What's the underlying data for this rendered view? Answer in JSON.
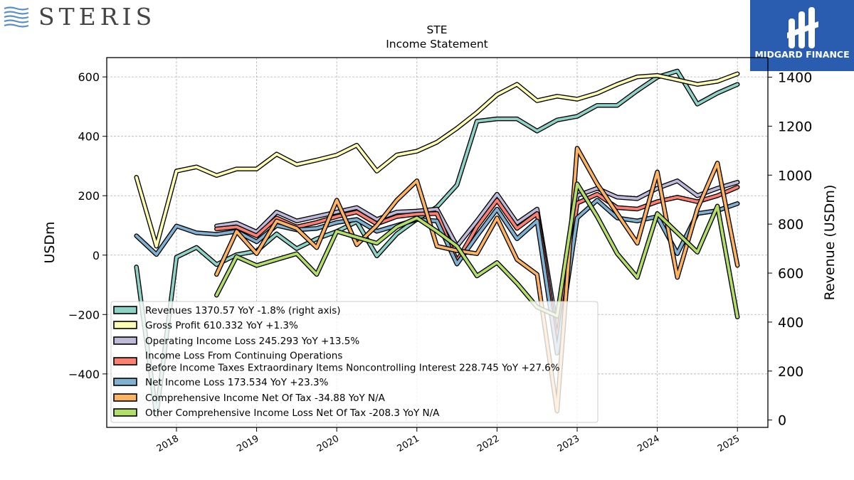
{
  "brand": {
    "name": "STERIS",
    "partner": "MIDGARD FINANCE"
  },
  "chart_data": {
    "type": "line",
    "title": "STE",
    "subtitle": "Income Statement",
    "ylabel_left": "USDm",
    "ylabel_right": "Revenue (USDm)",
    "ylim_left": [
      -580,
      665
    ],
    "ylim_right": [
      -30,
      1480
    ],
    "xlim": [
      2017.13,
      2025.38
    ],
    "left_ticks": [
      -400,
      -200,
      0,
      200,
      400,
      600
    ],
    "right_ticks": [
      0,
      200,
      400,
      600,
      800,
      1000,
      1200,
      1400
    ],
    "x_ticks": [
      "2018",
      "2019",
      "2020",
      "2021",
      "2022",
      "2023",
      "2024",
      "2025"
    ],
    "grid": true,
    "legend_position": "lower-left",
    "series": [
      {
        "name": "Revenues",
        "legend": "Revenues  1370.57 YoY -1.8% (right axis)",
        "axis": "right",
        "color": "#8dd3c7",
        "x": [
          2017.5,
          2017.75,
          2018.0,
          2018.25,
          2018.5,
          2018.75,
          2019.0,
          2019.25,
          2019.5,
          2019.75,
          2020.0,
          2020.25,
          2020.5,
          2020.75,
          2021.0,
          2021.25,
          2021.5,
          2021.75,
          2022.0,
          2022.25,
          2022.5,
          2022.75,
          2023.0,
          2023.25,
          2023.5,
          2023.75,
          2024.0,
          2024.25,
          2024.5,
          2024.75,
          2025.0
        ],
        "values": [
          625,
          20,
          665,
          705,
          635,
          675,
          690,
          760,
          700,
          740,
          770,
          810,
          670,
          760,
          820,
          870,
          960,
          1220,
          1230,
          1230,
          1180,
          1225,
          1240,
          1285,
          1285,
          1345,
          1400,
          1425,
          1290,
          1335,
          1370.57
        ]
      },
      {
        "name": "Gross Profit",
        "legend": "Gross Profit  610.332 YoY +1.3%",
        "axis": "left",
        "color": "#ffffb3",
        "x": [
          2017.5,
          2017.75,
          2018.0,
          2018.25,
          2018.5,
          2018.75,
          2019.0,
          2019.25,
          2019.5,
          2019.75,
          2020.0,
          2020.25,
          2020.5,
          2020.75,
          2021.0,
          2021.25,
          2021.5,
          2021.75,
          2022.0,
          2022.25,
          2022.5,
          2022.75,
          2023.0,
          2023.25,
          2023.5,
          2023.75,
          2024.0,
          2024.25,
          2024.5,
          2024.75,
          2025.0
        ],
        "values": [
          262,
          30,
          283,
          297,
          268,
          290,
          290,
          340,
          305,
          320,
          337,
          370,
          283,
          337,
          350,
          380,
          427,
          480,
          540,
          575,
          520,
          535,
          525,
          545,
          575,
          600,
          605,
          590,
          575,
          585,
          610.332
        ]
      },
      {
        "name": "Operating Income Loss",
        "legend": "Operating Income Loss  245.293 YoY +13.5%",
        "axis": "left",
        "color": "#bebada",
        "x": [
          2018.5,
          2018.75,
          2019.0,
          2019.25,
          2019.5,
          2019.75,
          2020.0,
          2020.25,
          2020.5,
          2020.75,
          2021.0,
          2021.25,
          2021.5,
          2021.75,
          2022.0,
          2022.25,
          2022.5,
          2022.75,
          2023.0,
          2023.25,
          2023.5,
          2023.75,
          2024.0,
          2024.25,
          2024.5,
          2024.75,
          2025.0
        ],
        "values": [
          98,
          108,
          78,
          145,
          115,
          130,
          145,
          160,
          120,
          145,
          148,
          155,
          30,
          115,
          205,
          108,
          155,
          -250,
          200,
          225,
          195,
          190,
          225,
          250,
          200,
          225,
          245.293
        ]
      },
      {
        "name": "Income Loss From Continuing Operations Before Income Taxes Extraordinary Items Noncontrolling Interest",
        "legend": "Income Loss From Continuing Operations\nBefore Income Taxes Extraordinary Items Noncontrolling Interest  228.745 YoY +27.6%",
        "axis": "left",
        "color": "#fb8072",
        "x": [
          2018.5,
          2018.75,
          2019.0,
          2019.25,
          2019.5,
          2019.75,
          2020.0,
          2020.25,
          2020.5,
          2020.75,
          2021.0,
          2021.25,
          2021.5,
          2021.75,
          2022.0,
          2022.25,
          2022.5,
          2022.75,
          2023.0,
          2023.25,
          2023.5,
          2023.75,
          2024.0,
          2024.25,
          2024.5,
          2024.75,
          2025.0
        ],
        "values": [
          88,
          95,
          65,
          125,
          95,
          110,
          130,
          145,
          105,
          130,
          138,
          140,
          -20,
          95,
          185,
          90,
          140,
          -290,
          175,
          205,
          160,
          155,
          180,
          195,
          180,
          200,
          228.745
        ]
      },
      {
        "name": "Net Income Loss",
        "legend": "Net Income Loss  173.534 YoY +23.3%",
        "axis": "left",
        "color": "#80b1d3",
        "x": [
          2017.5,
          2017.75,
          2018.0,
          2018.25,
          2018.5,
          2018.75,
          2019.0,
          2019.25,
          2019.5,
          2019.75,
          2020.0,
          2020.25,
          2020.5,
          2020.75,
          2021.0,
          2021.25,
          2021.5,
          2021.75,
          2022.0,
          2022.25,
          2022.5,
          2022.75,
          2023.0,
          2023.25,
          2023.5,
          2023.75,
          2024.0,
          2024.25,
          2024.5,
          2024.75,
          2025.0
        ],
        "values": [
          65,
          2,
          98,
          75,
          70,
          80,
          45,
          100,
          85,
          90,
          110,
          120,
          80,
          100,
          120,
          115,
          -30,
          65,
          155,
          55,
          115,
          -330,
          125,
          185,
          125,
          115,
          130,
          5,
          140,
          150,
          173.534
        ]
      },
      {
        "name": "Comprehensive Income Net Of Tax",
        "legend": "Comprehensive Income Net Of Tax  -34.88 YoY N/A",
        "axis": "left",
        "color": "#fdb462",
        "x": [
          2018.5,
          2018.75,
          2019.0,
          2019.25,
          2019.5,
          2019.75,
          2020.0,
          2020.25,
          2020.5,
          2020.75,
          2021.0,
          2021.25,
          2021.5,
          2021.75,
          2022.0,
          2022.25,
          2022.5,
          2022.75,
          2023.0,
          2023.25,
          2023.5,
          2023.75,
          2024.0,
          2024.25,
          2024.5,
          2024.75,
          2025.0
        ],
        "values": [
          -65,
          80,
          5,
          115,
          90,
          25,
          185,
          35,
          100,
          185,
          250,
          30,
          15,
          5,
          125,
          -15,
          -65,
          -525,
          360,
          240,
          140,
          40,
          280,
          -75,
          155,
          310,
          -34.88
        ]
      },
      {
        "name": "Other Comprehensive Income Loss Net Of Tax",
        "legend": "Other Comprehensive Income Loss Net Of Tax  -208.3 YoY N/A",
        "axis": "left",
        "color": "#b3de69",
        "x": [
          2018.5,
          2018.75,
          2019.0,
          2019.25,
          2019.5,
          2019.75,
          2020.0,
          2020.25,
          2020.5,
          2020.75,
          2021.0,
          2021.25,
          2021.5,
          2021.75,
          2022.0,
          2022.25,
          2022.5,
          2022.75,
          2023.0,
          2023.25,
          2023.5,
          2023.75,
          2024.0,
          2024.25,
          2024.5,
          2024.75,
          2025.0
        ],
        "values": [
          -135,
          -5,
          -35,
          -15,
          5,
          -65,
          80,
          60,
          40,
          95,
          125,
          80,
          30,
          -70,
          -25,
          -95,
          -175,
          -205,
          240,
          130,
          5,
          -75,
          140,
          75,
          10,
          165,
          -208.3
        ]
      }
    ]
  }
}
